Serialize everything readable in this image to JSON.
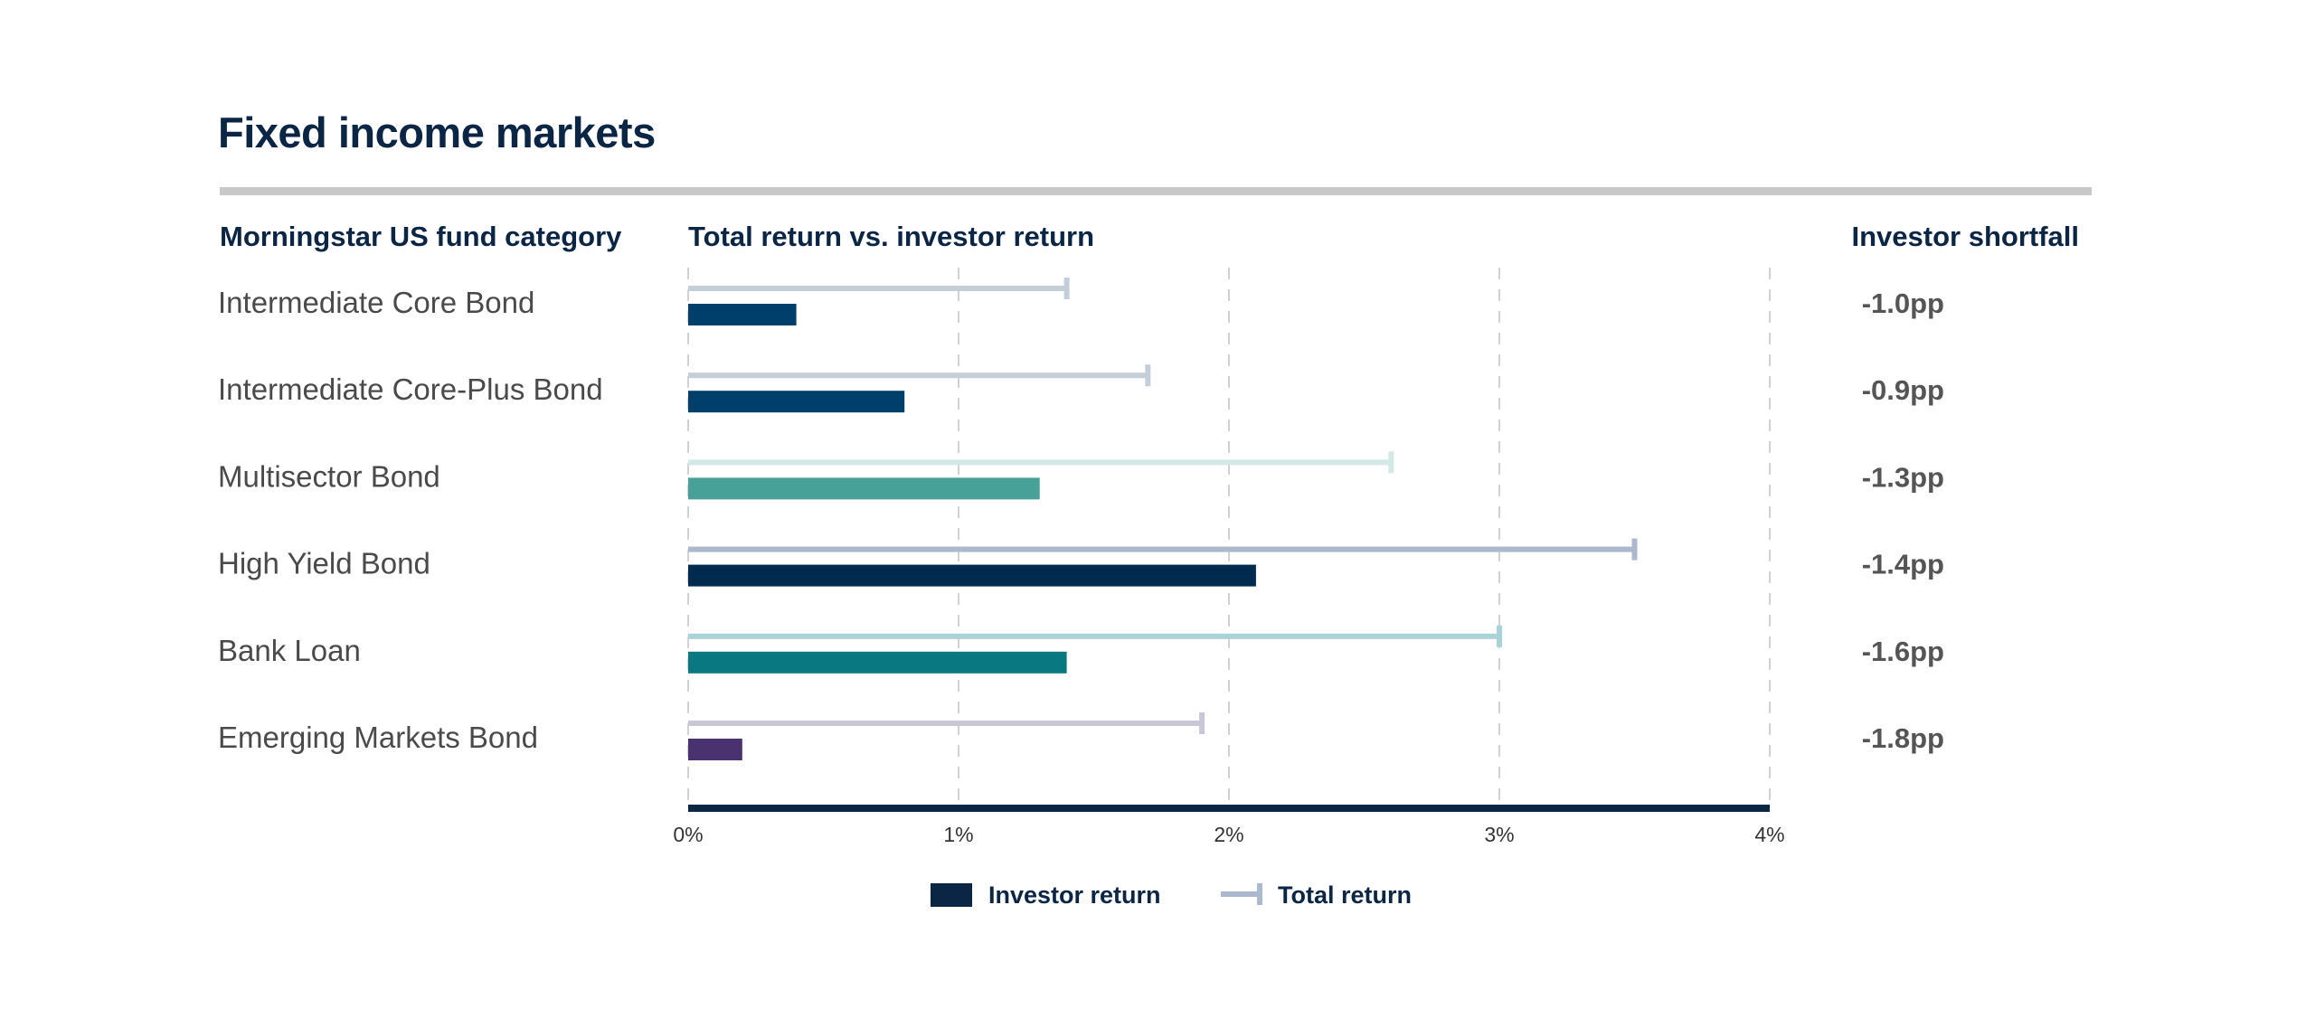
{
  "chart_data": {
    "type": "bar",
    "title": "Fixed income markets",
    "column_headers": {
      "category": "Morningstar US fund category",
      "chart": "Total return vs. investor return",
      "shortfall": "Investor shortfall"
    },
    "categories": [
      "Intermediate Core Bond",
      "Intermediate Core-Plus Bond",
      "Multisector Bond",
      "High Yield Bond",
      "Bank Loan",
      "Emerging Markets Bond"
    ],
    "series": [
      {
        "name": "Investor return",
        "values": [
          0.4,
          0.8,
          1.3,
          2.1,
          1.4,
          0.2
        ]
      },
      {
        "name": "Total return",
        "values": [
          1.4,
          1.7,
          2.6,
          3.5,
          3.0,
          1.9
        ]
      }
    ],
    "shortfall": [
      "-1.0pp",
      "-0.9pp",
      "-1.3pp",
      "-1.4pp",
      "-1.6pp",
      "-1.8pp"
    ],
    "xlim": [
      0,
      4
    ],
    "x_ticks": [
      "0%",
      "1%",
      "2%",
      "3%",
      "4%"
    ],
    "grid": true,
    "legend_position": "bottom-center",
    "colors": {
      "investor": [
        "#003f6b",
        "#003f6b",
        "#48a198",
        "#002b4f",
        "#0a7881",
        "#4a3170"
      ],
      "total": [
        "#c4ced9",
        "#c4ced9",
        "#d3e9e6",
        "#acb8cb",
        "#a9d3d6",
        "#c9c6d7"
      ],
      "title": "#0b2545",
      "rule": "#c8c8c8",
      "axis": "#0b2545",
      "legend_investor": "#0b2545",
      "legend_total": "#acb8cb"
    }
  }
}
